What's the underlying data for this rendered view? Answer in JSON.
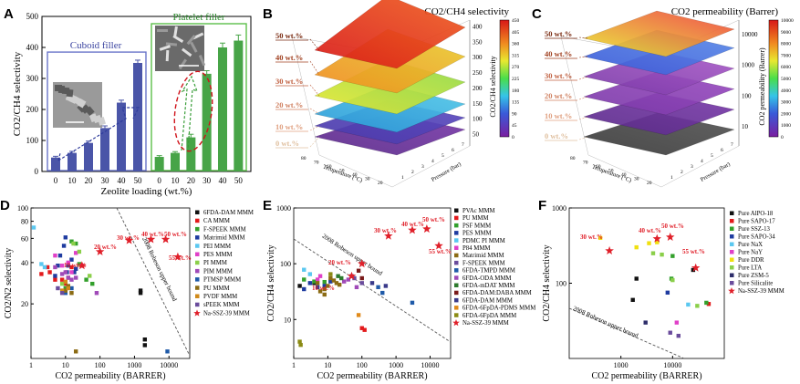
{
  "panels": {
    "A": "A",
    "B": "B",
    "C": "C",
    "D": "D",
    "E": "E",
    "F": "F"
  },
  "colors": {
    "bar_blue": "#4a55a8",
    "bar_green": "#47a447",
    "blue_box": "#6a74c9",
    "green_box": "#5cbf4a",
    "red_star": "#e0202a",
    "dashed_blue": "#2f3c9c",
    "dashed_green": "#3a9e3a",
    "ellipse_red": "#d0121a"
  },
  "chart_data": [
    {
      "id": "A",
      "type": "bar",
      "ylabel": "CO2/CH4 selectivity",
      "xlabel": "Zeolite loading (wt.%)",
      "ylim": [
        0,
        500
      ],
      "yticks": [
        0,
        100,
        200,
        300,
        400,
        500
      ],
      "groups": [
        {
          "name": "Cuboid filler",
          "categories": [
            "0",
            "10",
            "20",
            "30",
            "40",
            "50"
          ],
          "values": [
            45,
            60,
            92,
            140,
            222,
            350
          ],
          "errors": [
            4,
            5,
            6,
            7,
            8,
            9
          ]
        },
        {
          "name": "Platelet filler",
          "categories": [
            "0",
            "10",
            "20",
            "30",
            "40",
            "50"
          ],
          "values": [
            47,
            60,
            110,
            315,
            400,
            422
          ],
          "errors": [
            4,
            4,
            10,
            10,
            14,
            18
          ]
        }
      ]
    },
    {
      "id": "B",
      "type": "surface3d",
      "title": "CO2/CH4 selectivity",
      "zlabel": "CO2/CH4 selectivity",
      "colorbar": {
        "min": 0,
        "max": 450,
        "ticks": [
          0,
          45,
          90,
          135,
          180,
          225,
          270,
          315,
          360,
          405,
          450
        ]
      },
      "zticks": [
        50,
        100,
        150,
        200,
        250,
        300,
        350,
        400
      ],
      "layers": [
        "0 wt.%",
        "10 wt.%",
        "20 wt.%",
        "30 wt.%",
        "40 wt.%",
        "50 wt.%"
      ],
      "xlabel": "Temperature (°C)",
      "ylabel": "Pressure (bar)",
      "xticks": [
        "80",
        "70",
        "60",
        "50",
        "40",
        "30",
        "20"
      ],
      "yticks": [
        "1",
        "2",
        "3",
        "4",
        "5",
        "6",
        "7"
      ]
    },
    {
      "id": "C",
      "type": "surface3d",
      "title": "CO2 permeability (Barrer)",
      "zlabel": "CO2 permeability (Barrer)",
      "colorbar": {
        "min": 0,
        "max": 10000,
        "ticks": [
          0,
          1000,
          2000,
          3000,
          4000,
          5000,
          6000,
          7000,
          8000,
          9000,
          10000
        ]
      },
      "zticks": [
        "10",
        "100",
        "1000",
        "10000"
      ],
      "layers": [
        "0 wt.%",
        "10 wt.%",
        "20 wt.%",
        "30 wt.%",
        "40 wt.%",
        "50 wt.%"
      ],
      "xlabel": "Temperature (°C)",
      "ylabel": "Pressure (bar)",
      "xticks": [
        "80",
        "70",
        "60",
        "50",
        "40",
        "30",
        "20"
      ],
      "yticks": [
        "1",
        "2",
        "3",
        "4",
        "5",
        "6",
        "7"
      ]
    },
    {
      "id": "D",
      "type": "scatter",
      "xlabel": "CO2 permeability (BARRER)",
      "ylabel": "CO2/N2 selectivity",
      "xscale": "log",
      "yscale": "log",
      "xlim": [
        1,
        40000
      ],
      "ylim": [
        8,
        100
      ],
      "xticks": [
        "1",
        "10",
        "100",
        "1000",
        "10000"
      ],
      "yticks": [
        "20",
        "40",
        "60",
        "80",
        "100"
      ],
      "upper_bound_label": "2008 Robeson upper bound",
      "series": [
        {
          "name": "6FDA-DAM MMM",
          "color": "#111111",
          "points": [
            [
              1500,
              25
            ],
            [
              2000,
              11
            ],
            [
              2000,
              10
            ],
            [
              1500,
              24
            ]
          ]
        },
        {
          "name": "CA MMM",
          "color": "#e31a1c",
          "points": [
            [
              3,
              37
            ],
            [
              5,
              30
            ],
            [
              8,
              30
            ],
            [
              10,
              28
            ],
            [
              15,
              37
            ],
            [
              3.5,
              34
            ],
            [
              12,
              31
            ],
            [
              2,
              33
            ]
          ]
        },
        {
          "name": "F-SPEEK MMM",
          "color": "#33a02c",
          "points": [
            [
              15,
              57
            ],
            [
              20,
              55
            ],
            [
              25,
              39
            ],
            [
              10,
              26
            ],
            [
              40,
              30
            ],
            [
              60,
              28
            ]
          ]
        },
        {
          "name": "Matrimid MMM",
          "color": "#1f3ca0",
          "points": [
            [
              10,
              61
            ],
            [
              11,
              34
            ],
            [
              12,
              38
            ],
            [
              15,
              42
            ],
            [
              20,
              36
            ],
            [
              18,
              34
            ],
            [
              5,
              32
            ],
            [
              6,
              38
            ],
            [
              7,
              45
            ],
            [
              9,
              53
            ]
          ]
        },
        {
          "name": "PEI MMM",
          "color": "#5bc8f0",
          "points": [
            [
              1.2,
              72
            ],
            [
              2,
              39
            ],
            [
              2.5,
              37
            ]
          ]
        },
        {
          "name": "PES MMM",
          "color": "#e040c8",
          "points": [
            [
              5,
              45
            ],
            [
              8,
              38
            ],
            [
              12,
              40
            ],
            [
              30,
              38
            ],
            [
              15,
              34
            ],
            [
              20,
              47
            ]
          ]
        },
        {
          "name": "PI MMM",
          "color": "#8bcf4a",
          "points": [
            [
              17,
              55
            ],
            [
              25,
              48
            ],
            [
              50,
              32
            ],
            [
              8,
              28
            ]
          ]
        },
        {
          "name": "PIM MMM",
          "color": "#a04ab8",
          "points": [
            [
              5,
              37
            ],
            [
              8,
              33
            ],
            [
              10,
              34
            ],
            [
              12,
              31
            ],
            [
              15,
              30
            ],
            [
              20,
              31
            ],
            [
              80,
              24
            ]
          ]
        },
        {
          "name": "PTMSP MMM",
          "color": "#1f5aa8",
          "points": [
            [
              9000,
              9
            ],
            [
              10,
              24
            ],
            [
              15,
              26
            ]
          ]
        },
        {
          "name": "PU MMM",
          "color": "#8b6b14",
          "points": [
            [
              12,
              27
            ],
            [
              10,
              25
            ],
            [
              15,
              24
            ],
            [
              20,
              9
            ]
          ]
        },
        {
          "name": "PVDF MMM",
          "color": "#d08a1a",
          "points": [
            [
              8,
              25
            ],
            [
              10,
              29
            ],
            [
              12,
              26
            ]
          ]
        },
        {
          "name": "sPEEK MMM",
          "color": "#6a4c9c",
          "points": [
            [
              6,
              26
            ],
            [
              8,
              24
            ]
          ]
        },
        {
          "name": "Na-SSZ-39 MMM",
          "color": "#e0202a",
          "marker": "star",
          "points": [
            [
              30,
              38
            ],
            [
              100,
              48
            ],
            [
              700,
              58
            ],
            [
              3000,
              59
            ],
            [
              8000,
              59
            ],
            [
              18000,
              44
            ]
          ]
        }
      ],
      "annotations": [
        "10 wt.%",
        "20 wt.%",
        "30 wt.%",
        "40 wt.%",
        "50 wt.%",
        "55 wt.%"
      ]
    },
    {
      "id": "E",
      "type": "scatter",
      "xlabel": "CO2 permeability (BARRER)",
      "ylabel": "CO2/CH4 selectivity",
      "xscale": "log",
      "yscale": "log",
      "xlim": [
        1,
        40000
      ],
      "ylim": [
        2,
        1000
      ],
      "xticks": [
        "1",
        "10",
        "100",
        "1000",
        "10000"
      ],
      "yticks": [
        "10",
        "100",
        "1000"
      ],
      "upper_bound_label": "2008 Robeson upper bound",
      "series": [
        {
          "name": "PVAc MMM",
          "color": "#111111",
          "points": [
            [
              4,
              45
            ],
            [
              1.5,
              40
            ]
          ]
        },
        {
          "name": "PU MMM",
          "color": "#e31a1c",
          "points": [
            [
              120,
              6.5
            ],
            [
              100,
              7
            ]
          ]
        },
        {
          "name": "PSF MMM",
          "color": "#33a02c",
          "points": [
            [
              2,
              52
            ],
            [
              4,
              48
            ],
            [
              8,
              47
            ]
          ]
        },
        {
          "name": "PES MMM",
          "color": "#1f3ca0",
          "points": [
            [
              3,
              45
            ],
            [
              2,
              35
            ],
            [
              5,
              38
            ],
            [
              8,
              40
            ],
            [
              12,
              48
            ]
          ]
        },
        {
          "name": "PDMC PI MMM",
          "color": "#5bc8f0",
          "points": [
            [
              2,
              78
            ],
            [
              3,
              65
            ]
          ]
        },
        {
          "name": "P84 MMM",
          "color": "#e040c8",
          "points": [
            [
              6,
              60
            ],
            [
              5,
              52
            ]
          ]
        },
        {
          "name": "Matrimid MMM",
          "color": "#8b6b14",
          "points": [
            [
              5,
              45
            ],
            [
              8,
              35
            ],
            [
              10,
              40
            ],
            [
              12,
              55
            ],
            [
              15,
              50
            ],
            [
              18,
              45
            ],
            [
              22,
              42
            ],
            [
              6,
              32
            ],
            [
              8,
              28
            ]
          ]
        },
        {
          "name": "F-SPEEK MMM",
          "color": "#6a4c9c",
          "points": [
            [
              50,
              60
            ],
            [
              60,
              55
            ],
            [
              100,
              45
            ]
          ]
        },
        {
          "name": "6FDA-TMPD MMM",
          "color": "#1f5aa8",
          "points": [
            [
              300,
              38
            ],
            [
              400,
              30
            ],
            [
              3000,
              20
            ]
          ]
        },
        {
          "name": "6FDA-ODA MMM",
          "color": "#a04ab8",
          "points": [
            [
              30,
              48
            ],
            [
              40,
              52
            ],
            [
              70,
              38
            ]
          ]
        },
        {
          "name": "6FDA-mDAT MMM",
          "color": "#2d7a2d",
          "points": [
            [
              20,
              60
            ],
            [
              25,
              55
            ]
          ]
        },
        {
          "name": "6FDA-DAM:DABA MMM",
          "color": "#7a1a1a",
          "points": [
            [
              80,
              75
            ],
            [
              100,
              55
            ]
          ]
        },
        {
          "name": "6FDA-DAM MMM",
          "color": "#3a3a8a",
          "points": [
            [
              200,
              45
            ],
            [
              500,
              40
            ]
          ]
        },
        {
          "name": "6FDA-6FpDA-PDMS MMM",
          "color": "#e08a1a",
          "points": [
            [
              80,
              12
            ]
          ]
        },
        {
          "name": "6FDA-6FpDA MMM",
          "color": "#8b8b14",
          "points": [
            [
              1.5,
              4
            ],
            [
              1.6,
              3.5
            ],
            [
              12,
              65
            ]
          ]
        },
        {
          "name": "Na-SSZ-39 MMM",
          "color": "#e0202a",
          "marker": "star",
          "points": [
            [
              50,
              60
            ],
            [
              100,
              100
            ],
            [
              600,
              315
            ],
            [
              3000,
              400
            ],
            [
              8000,
              420
            ],
            [
              18000,
              210
            ]
          ]
        }
      ],
      "annotations": [
        "10 wt.%",
        "20 wt.%",
        "30 wt.%",
        "40 wt.%",
        "50 wt.%",
        "55 wt.%"
      ]
    },
    {
      "id": "F",
      "type": "scatter",
      "xlabel": "CO2 permeability (BARRER)",
      "ylabel": "CO2/CH4 selectivity",
      "xscale": "log",
      "yscale": "log",
      "xlim": [
        100,
        100000
      ],
      "ylim": [
        10,
        1000
      ],
      "xticks": [
        "1000",
        "10000"
      ],
      "yticks": [
        "100",
        "1000"
      ],
      "upper_bound_label": "2008 Robeson upper bound",
      "series": [
        {
          "name": "Pure AlPO-18",
          "color": "#111111",
          "points": [
            [
              2000,
              115
            ],
            [
              1700,
              60
            ],
            [
              25000,
              150
            ]
          ]
        },
        {
          "name": "Pure SAPO-17",
          "color": "#e31a1c",
          "points": [
            [
              50000,
              53
            ]
          ]
        },
        {
          "name": "Pure SSZ-13",
          "color": "#33a02c",
          "points": [
            [
              10000,
              230
            ],
            [
              9500,
              115
            ],
            [
              45000,
              55
            ]
          ]
        },
        {
          "name": "Pure SAPO-34",
          "color": "#1f3ca0",
          "points": [
            [
              8000,
              75
            ]
          ]
        },
        {
          "name": "Pure NaX",
          "color": "#5bc8f0",
          "points": [
            [
              20000,
              52
            ]
          ]
        },
        {
          "name": "Pure NaY",
          "color": "#e040c8",
          "points": [
            [
              12000,
              30
            ]
          ]
        },
        {
          "name": "Pure DDR",
          "color": "#f0e010",
          "points": [
            [
              400,
              400
            ],
            [
              2000,
              300
            ],
            [
              3500,
              340
            ],
            [
              5000,
              350
            ]
          ]
        },
        {
          "name": "Pure LTA",
          "color": "#8bcf4a",
          "points": [
            [
              4200,
              250
            ],
            [
              6200,
              240
            ],
            [
              10000,
              110
            ],
            [
              30000,
              50
            ]
          ]
        },
        {
          "name": "Pure ZSM-5",
          "color": "#2d2d6a",
          "points": [
            [
              3000,
              30
            ]
          ]
        },
        {
          "name": "Pure Silicalite",
          "color": "#6a4c9c",
          "points": [
            [
              9000,
              22
            ],
            [
              13000,
              20
            ]
          ]
        },
        {
          "name": "Na-SSZ-39 MMM",
          "color": "#e0202a",
          "marker": "star",
          "points": [
            [
              600,
              270
            ],
            [
              5000,
              390
            ],
            [
              9000,
              410
            ],
            [
              28000,
              160
            ]
          ]
        }
      ],
      "annotations": [
        "30 wt.%",
        "40 wt.%",
        "50 wt.%",
        "55 wt.%"
      ]
    }
  ]
}
